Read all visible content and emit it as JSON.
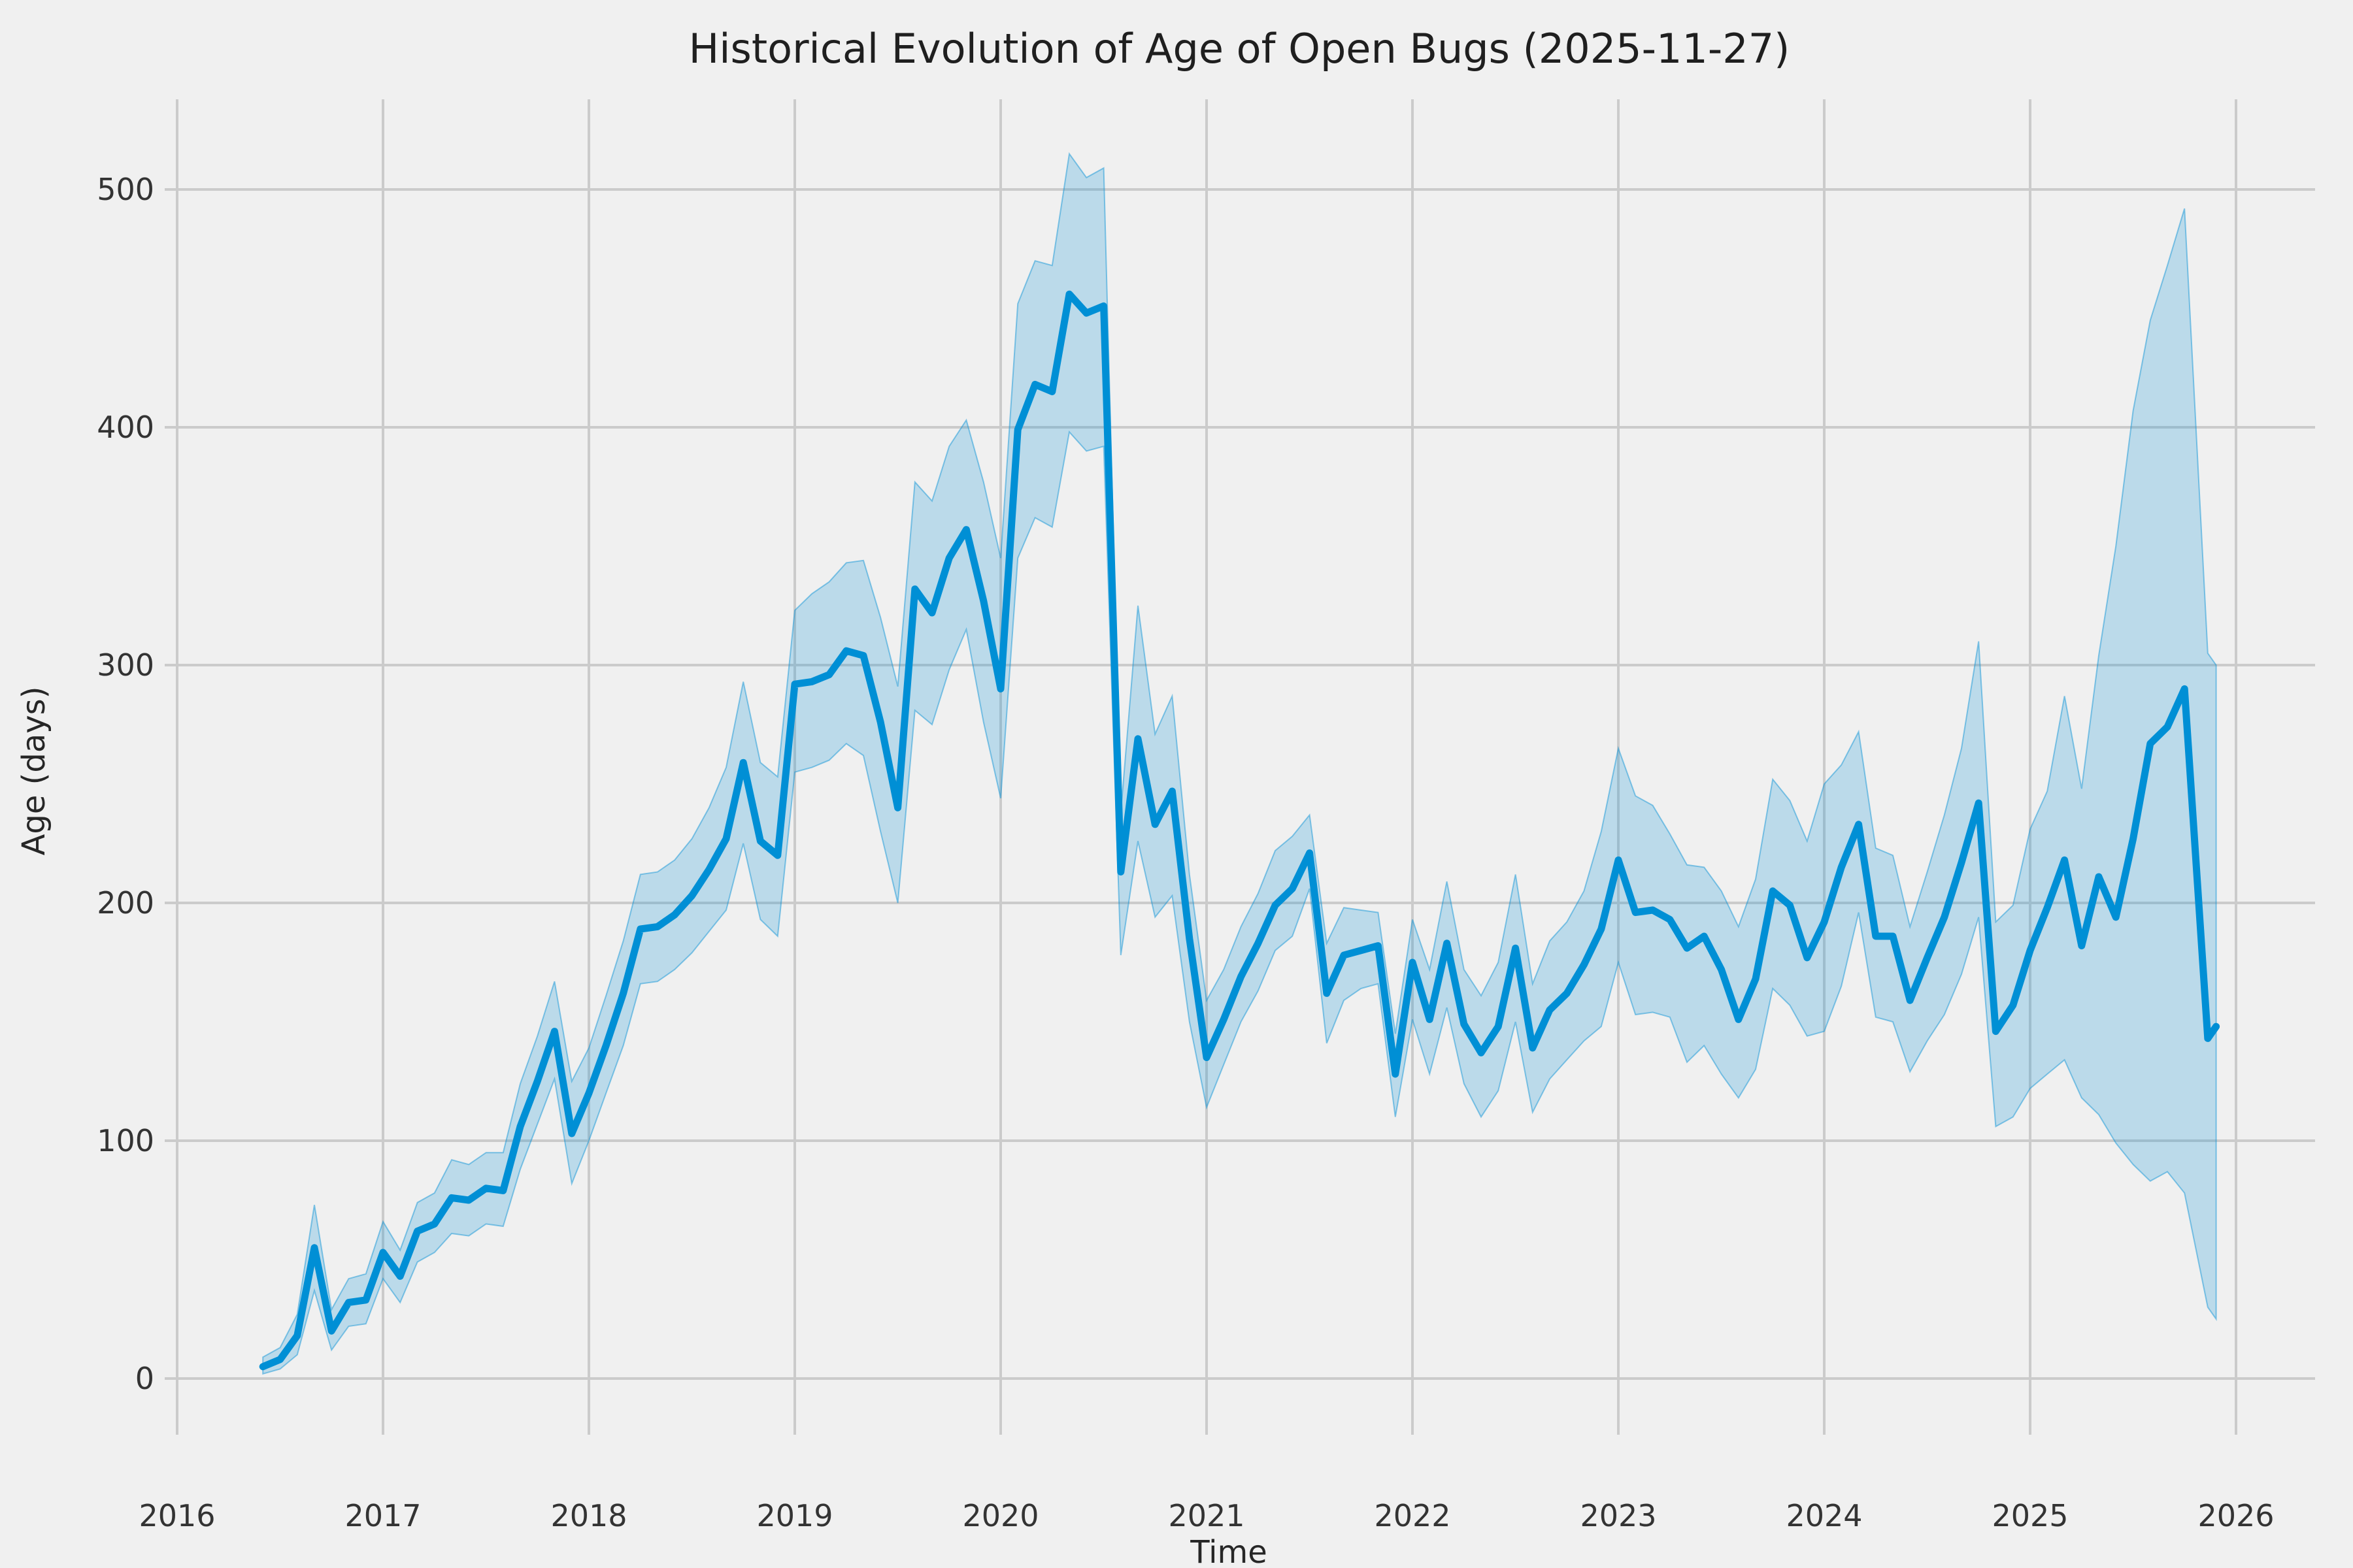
{
  "chart_data": {
    "type": "line",
    "title": "Historical Evolution of Age of Open Bugs (2025-11-27)",
    "xlabel": "Time",
    "ylabel": "Age (days)",
    "x_tick_labels": [
      "2016",
      "2017",
      "2018",
      "2019",
      "2020",
      "2021",
      "2022",
      "2023",
      "2024",
      "2025",
      "2026"
    ],
    "y_tick_labels": [
      "0",
      "100",
      "200",
      "300",
      "400",
      "500"
    ],
    "xlim": [
      2015.94,
      2026.38
    ],
    "ylim": [
      -24,
      538
    ],
    "grid": true,
    "legend_position": "none",
    "colors": {
      "line": "#008fd5",
      "band_fill": "#008fd5",
      "band_fill_opacity": 0.22,
      "band_edge": "#008fd5",
      "band_edge_opacity": 0.45,
      "background": "#f0f0f0",
      "gridline": "#cbcbcb",
      "text": "#262626"
    },
    "dates": [
      "2016-06",
      "2016-07",
      "2016-08",
      "2016-09",
      "2016-10",
      "2016-11",
      "2016-12",
      "2017-01",
      "2017-02",
      "2017-03",
      "2017-04",
      "2017-05",
      "2017-06",
      "2017-07",
      "2017-08",
      "2017-09",
      "2017-10",
      "2017-11",
      "2017-12",
      "2018-01",
      "2018-02",
      "2018-03",
      "2018-04",
      "2018-05",
      "2018-06",
      "2018-07",
      "2018-08",
      "2018-09",
      "2018-10",
      "2018-11",
      "2018-12",
      "2019-01",
      "2019-02",
      "2019-03",
      "2019-04",
      "2019-05",
      "2019-06",
      "2019-07",
      "2019-08",
      "2019-09",
      "2019-10",
      "2019-11",
      "2019-12",
      "2020-01",
      "2020-02",
      "2020-03",
      "2020-04",
      "2020-05",
      "2020-06",
      "2020-07",
      "2020-08",
      "2020-09",
      "2020-10",
      "2020-11",
      "2020-12",
      "2021-01",
      "2021-02",
      "2021-03",
      "2021-04",
      "2021-05",
      "2021-06",
      "2021-07",
      "2021-08",
      "2021-09",
      "2021-10",
      "2021-11",
      "2021-12",
      "2022-01",
      "2022-02",
      "2022-03",
      "2022-04",
      "2022-05",
      "2022-06",
      "2022-07",
      "2022-08",
      "2022-09",
      "2022-10",
      "2022-11",
      "2022-12",
      "2023-01",
      "2023-02",
      "2023-03",
      "2023-04",
      "2023-05",
      "2023-06",
      "2023-07",
      "2023-08",
      "2023-09",
      "2023-10",
      "2023-11",
      "2023-12",
      "2024-01",
      "2024-02",
      "2024-03",
      "2024-04",
      "2024-05",
      "2024-06",
      "2024-07",
      "2024-08",
      "2024-09",
      "2024-10",
      "2024-11",
      "2024-12",
      "2025-01",
      "2025-02",
      "2025-03",
      "2025-04",
      "2025-05",
      "2025-06",
      "2025-07",
      "2025-08",
      "2025-09",
      "2025-10",
      "2025-11-12",
      "2025-11-27"
    ],
    "series": [
      {
        "name": "mean_open_bug_age_days",
        "values": [
          5,
          8,
          18,
          55,
          20,
          32,
          33,
          53,
          43,
          62,
          65,
          76,
          75,
          80,
          79,
          106,
          125,
          146,
          103,
          120,
          140,
          162,
          189,
          190,
          195,
          203,
          214,
          227,
          259,
          226,
          220,
          292,
          293,
          296,
          306,
          304,
          276,
          240,
          332,
          322,
          345,
          357,
          327,
          290,
          399,
          418,
          415,
          456,
          448,
          451,
          213,
          269,
          233,
          247,
          185,
          135,
          151,
          169,
          183,
          199,
          206,
          221,
          162,
          178,
          180,
          182,
          128,
          175,
          151,
          183,
          149,
          137,
          148,
          181,
          139,
          155,
          162,
          174,
          189,
          218,
          196,
          197,
          193,
          181,
          186,
          172,
          151,
          168,
          205,
          199,
          177,
          192,
          215,
          233,
          186,
          186,
          159,
          177,
          194,
          217,
          242,
          146,
          157,
          180,
          198,
          218,
          182,
          211,
          194,
          227,
          267,
          274,
          290,
          143,
          148
        ]
      },
      {
        "name": "confidence_band",
        "lower": [
          2,
          4,
          10,
          37,
          12,
          22,
          23,
          42,
          32,
          49,
          53,
          61,
          60,
          65,
          64,
          88,
          107,
          126,
          82,
          100,
          120,
          140,
          166,
          167,
          172,
          179,
          188,
          197,
          225,
          193,
          186,
          255,
          257,
          260,
          267,
          262,
          230,
          200,
          281,
          275,
          298,
          315,
          276,
          244,
          345,
          362,
          358,
          398,
          390,
          392,
          178,
          226,
          194,
          203,
          150,
          114,
          132,
          150,
          163,
          180,
          186,
          206,
          141,
          159,
          164,
          166,
          110,
          151,
          128,
          156,
          124,
          110,
          121,
          150,
          112,
          126,
          134,
          142,
          148,
          175,
          153,
          154,
          152,
          133,
          140,
          128,
          118,
          130,
          164,
          157,
          144,
          146,
          165,
          196,
          152,
          150,
          129,
          142,
          153,
          170,
          194,
          106,
          110,
          122,
          128,
          134,
          118,
          111,
          99,
          90,
          83,
          87,
          78,
          30,
          25
        ],
        "upper": [
          9,
          13,
          27,
          73,
          29,
          42,
          44,
          66,
          54,
          74,
          78,
          92,
          90,
          95,
          95,
          124,
          144,
          167,
          125,
          139,
          161,
          184,
          212,
          213,
          218,
          227,
          240,
          257,
          293,
          259,
          253,
          323,
          330,
          335,
          343,
          344,
          320,
          291,
          377,
          369,
          392,
          403,
          377,
          345,
          452,
          470,
          468,
          515,
          505,
          509,
          238,
          325,
          271,
          287,
          212,
          159,
          172,
          190,
          204,
          222,
          228,
          237,
          183,
          198,
          197,
          196,
          145,
          193,
          172,
          209,
          172,
          161,
          175,
          212,
          166,
          184,
          192,
          205,
          230,
          265,
          245,
          241,
          229,
          216,
          215,
          205,
          190,
          210,
          252,
          243,
          226,
          250,
          258,
          272,
          223,
          220,
          190,
          213,
          237,
          265,
          310,
          192,
          199,
          231,
          247,
          287,
          248,
          304,
          350,
          407,
          445,
          468,
          492,
          305,
          300
        ]
      }
    ]
  }
}
